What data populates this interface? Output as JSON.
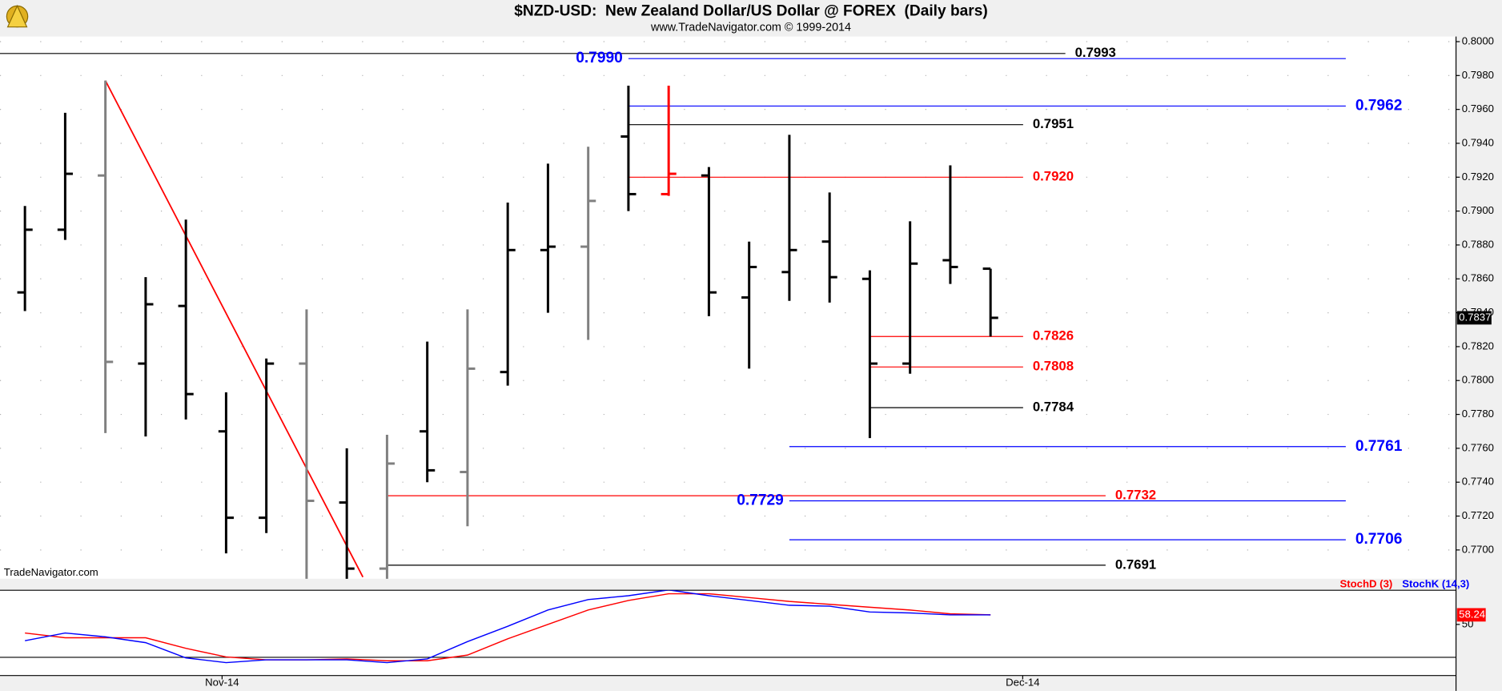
{
  "chart_data": {
    "type": "ohlc",
    "title": "$NZD-USD:  New Zealand Dollar/US Dollar @ FOREX  (Daily bars)",
    "subtitle": "www.TradeNavigator.com © 1999-2014",
    "watermark": "TradeNavigator.com",
    "xlim": [
      -0.62,
      35.57
    ],
    "xticks": [
      {
        "value": 4.9,
        "label": "Nov-14"
      },
      {
        "value": 24.8,
        "label": "Dec-14"
      }
    ],
    "ylim": [
      0.7683,
      0.8003
    ],
    "yticks": [
      {
        "value": 0.8,
        "label": "0.8000"
      },
      {
        "value": 0.798,
        "label": "0.7980"
      },
      {
        "value": 0.796,
        "label": "0.7960"
      },
      {
        "value": 0.794,
        "label": "0.7940"
      },
      {
        "value": 0.792,
        "label": "0.7920"
      },
      {
        "value": 0.79,
        "label": "0.7900"
      },
      {
        "value": 0.788,
        "label": "0.7880"
      },
      {
        "value": 0.786,
        "label": "0.7860"
      },
      {
        "value": 0.784,
        "label": "0.7840"
      },
      {
        "value": 0.782,
        "label": "0.7820"
      },
      {
        "value": 0.78,
        "label": "0.7800"
      },
      {
        "value": 0.778,
        "label": "0.7780"
      },
      {
        "value": 0.776,
        "label": "0.7760"
      },
      {
        "value": 0.774,
        "label": "0.7740"
      },
      {
        "value": 0.772,
        "label": "0.7720"
      },
      {
        "value": 0.77,
        "label": "0.7700"
      }
    ],
    "grid": true,
    "open": [
      0.7852,
      0.7889,
      0.7921,
      0.781,
      0.7844,
      0.777,
      0.7719,
      0.781,
      0.7728,
      0.7689,
      0.777,
      0.7746,
      0.7805,
      0.7877,
      0.7879,
      0.7944,
      0.791,
      0.7921,
      0.7849,
      0.7864,
      0.7882,
      0.786,
      0.781,
      0.7871,
      0.7866
    ],
    "high": [
      0.7903,
      0.7958,
      0.7977,
      0.7861,
      0.7895,
      0.7793,
      0.7813,
      0.7842,
      0.776,
      0.7768,
      0.7823,
      0.7842,
      0.7905,
      0.7928,
      0.7938,
      0.7974,
      0.7974,
      0.7926,
      0.7882,
      0.7945,
      0.7911,
      0.7865,
      0.7894,
      0.7927,
      0.7866
    ],
    "low": [
      0.7841,
      0.7883,
      0.7769,
      0.7767,
      0.7777,
      0.7698,
      0.771,
      0.7675,
      0.767,
      0.7672,
      0.774,
      0.7714,
      0.7797,
      0.784,
      0.7824,
      0.79,
      0.7909,
      0.7838,
      0.7807,
      0.7847,
      0.7846,
      0.7766,
      0.7804,
      0.7857,
      0.7826
    ],
    "close": [
      0.7889,
      0.7922,
      0.7811,
      0.7845,
      0.7792,
      0.7719,
      0.781,
      0.7729,
      0.7689,
      0.7751,
      0.7747,
      0.7807,
      0.7877,
      0.7879,
      0.7906,
      0.791,
      0.7922,
      0.7852,
      0.7867,
      0.7877,
      0.7861,
      0.781,
      0.7869,
      0.7867,
      0.7837
    ],
    "bar_colors": [
      "#000000",
      "#000000",
      "#808080",
      "#000000",
      "#000000",
      "#000000",
      "#000000",
      "#808080",
      "#000000",
      "#808080",
      "#000000",
      "#808080",
      "#000000",
      "#000000",
      "#808080",
      "#000000",
      "#ff0000",
      "#000000",
      "#000000",
      "#000000",
      "#000000",
      "#000000",
      "#000000",
      "#000000",
      "#000000"
    ],
    "trendline": {
      "color": "#ff0000",
      "x": [
        2,
        8.4
      ],
      "values": [
        0.7977,
        0.7684
      ]
    },
    "levels": [
      {
        "value": 0.7993,
        "label": "0.7993",
        "color": "#000000",
        "x": [
          -0.62,
          25.86
        ],
        "label_side": "right"
      },
      {
        "value": 0.799,
        "label": "0.7990",
        "color": "#0000ff",
        "x": [
          15,
          32.83
        ],
        "label_side": "left"
      },
      {
        "value": 0.7962,
        "label": "0.7962",
        "color": "#0000ff",
        "x": [
          15,
          32.83
        ],
        "label_side": "right"
      },
      {
        "value": 0.7951,
        "label": "0.7951",
        "color": "#000000",
        "x": [
          15,
          24.81
        ],
        "label_side": "right"
      },
      {
        "value": 0.792,
        "label": "0.7920",
        "color": "#ff0000",
        "x": [
          15,
          24.81
        ],
        "label_side": "right"
      },
      {
        "value": 0.7826,
        "label": "0.7826",
        "color": "#ff0000",
        "x": [
          21,
          24.81
        ],
        "label_side": "right"
      },
      {
        "value": 0.7808,
        "label": "0.7808",
        "color": "#ff0000",
        "x": [
          21,
          24.81
        ],
        "label_side": "right"
      },
      {
        "value": 0.7784,
        "label": "0.7784",
        "color": "#000000",
        "x": [
          21,
          24.81
        ],
        "label_side": "right"
      },
      {
        "value": 0.7761,
        "label": "0.7761",
        "color": "#0000ff",
        "x": [
          19,
          32.83
        ],
        "label_side": "right"
      },
      {
        "value": 0.7732,
        "label": "0.7732",
        "color": "#ff0000",
        "x": [
          9,
          26.86
        ],
        "label_side": "right"
      },
      {
        "value": 0.7729,
        "label": "0.7729",
        "color": "#0000ff",
        "x": [
          19,
          32.83
        ],
        "label_side": "left"
      },
      {
        "value": 0.7706,
        "label": "0.7706",
        "color": "#0000ff",
        "x": [
          19,
          32.83
        ],
        "label_side": "right"
      },
      {
        "value": 0.7691,
        "label": "0.7691",
        "color": "#000000",
        "x": [
          9,
          26.86
        ],
        "label_side": "right"
      }
    ],
    "y2lim": [
      6.0,
      79.4
    ],
    "y2ticks": [
      50
    ],
    "series": [
      {
        "name": "StochD (3)",
        "color": "#ff0000",
        "axis": "y2",
        "values": [
          42.6,
          38.5,
          38.5,
          38.5,
          29.4,
          22.0,
          19.5,
          19.5,
          20.3,
          18.7,
          18.7,
          23.6,
          37.6,
          50.0,
          62.4,
          70.6,
          76.4,
          76.4,
          73.1,
          69.8,
          67.3,
          64.8,
          62.4,
          59.1,
          58.24
        ]
      },
      {
        "name": "StochK (14,3)",
        "color": "#0000ff",
        "axis": "y2",
        "values": [
          36.0,
          42.6,
          39.3,
          34.3,
          21.2,
          17.1,
          19.5,
          19.5,
          19.5,
          17.1,
          20.3,
          35.2,
          48.4,
          62.4,
          71.4,
          74.7,
          79.7,
          74.7,
          70.6,
          66.5,
          65.7,
          60.7,
          59.9,
          58.2,
          58.2
        ]
      }
    ]
  }
}
